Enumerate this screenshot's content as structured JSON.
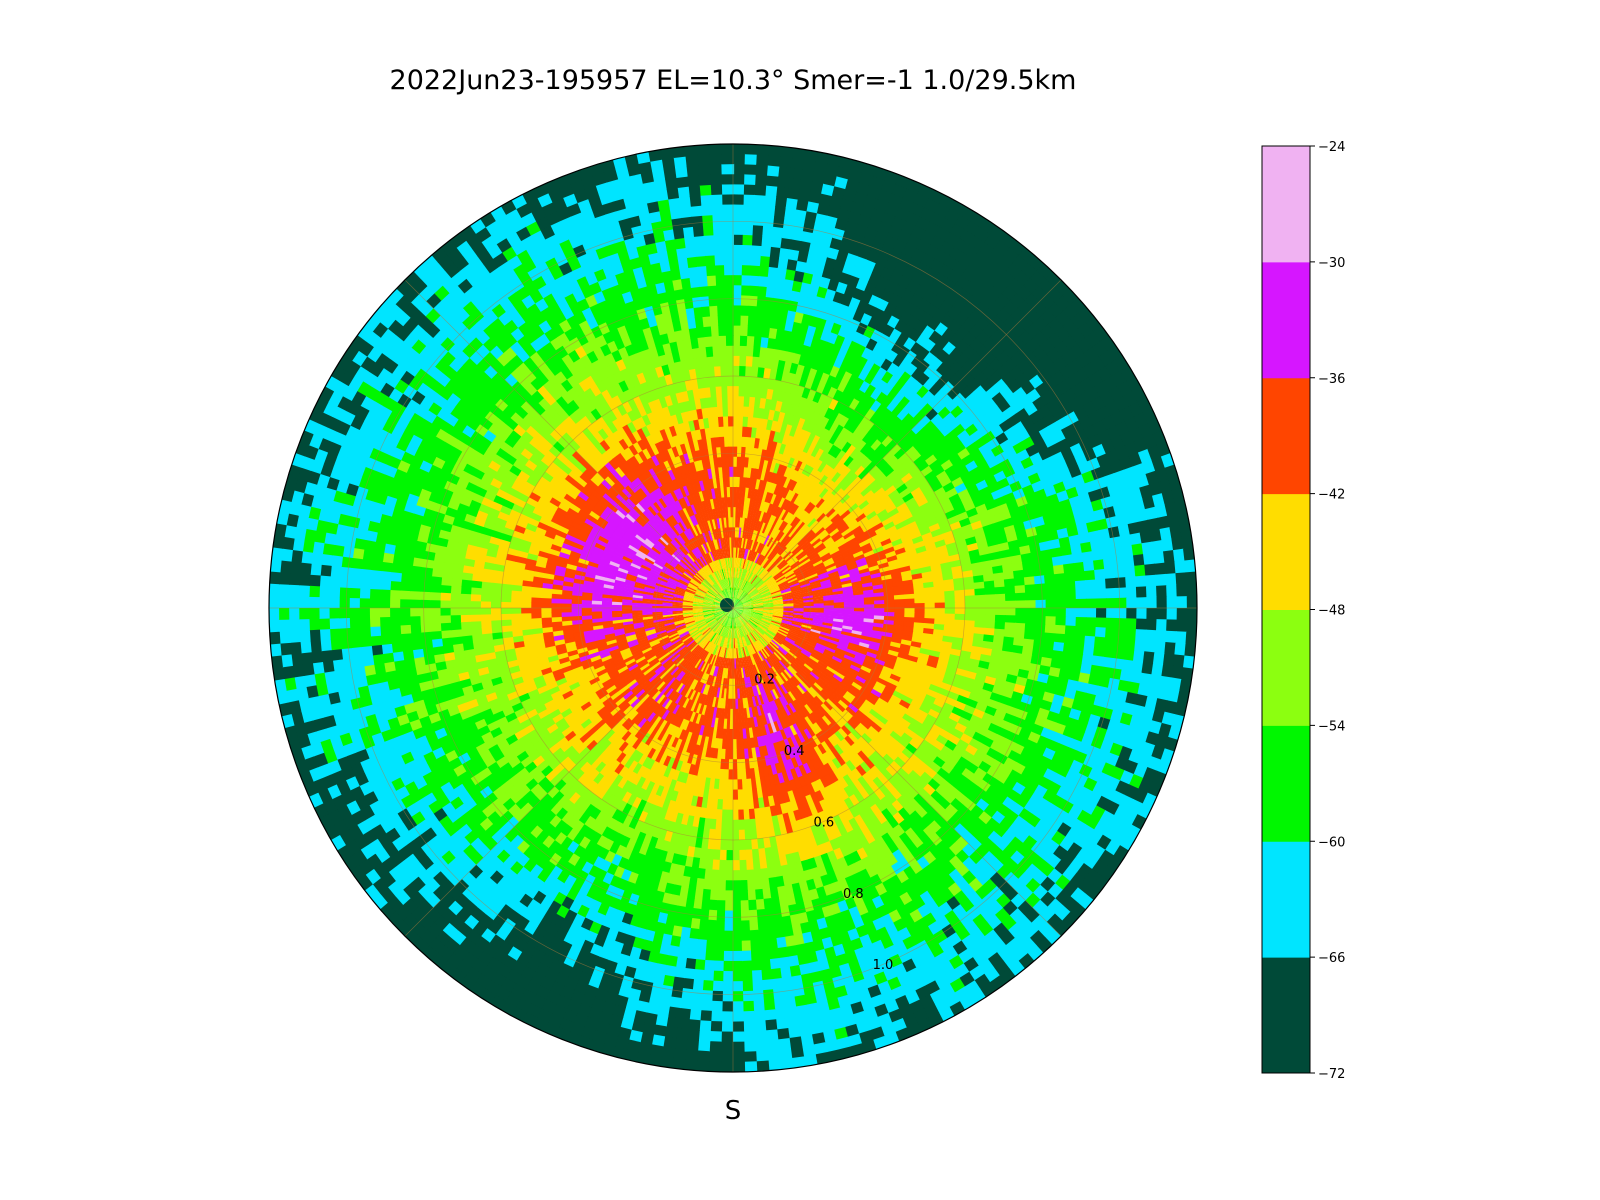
{
  "chart_data": {
    "type": "heatmap",
    "projection": "polar",
    "title": "2022Jun23-195957  EL=10.3°  Smer=-1  1.0/29.5km",
    "direction_label": "S",
    "radial_ticks": [
      "0.2",
      "0.4",
      "0.6",
      "0.8",
      "1.0"
    ],
    "radial_tick_values": [
      0.2,
      0.4,
      0.6,
      0.8,
      1.0
    ],
    "rlim": [
      0,
      1.2
    ],
    "grid": true,
    "colorbar": {
      "levels": [
        -72,
        -66,
        -60,
        -54,
        -48,
        -42,
        -36,
        -30,
        -24
      ],
      "tick_labels": [
        "−72",
        "−66",
        "−60",
        "−54",
        "−48",
        "−42",
        "−36",
        "−30",
        "−24"
      ],
      "colors": [
        "#004a38",
        "#00e5ff",
        "#00f700",
        "#8cff10",
        "#ffdd00",
        "#ff4500",
        "#d616ff",
        "#f0b2f2"
      ]
    }
  }
}
